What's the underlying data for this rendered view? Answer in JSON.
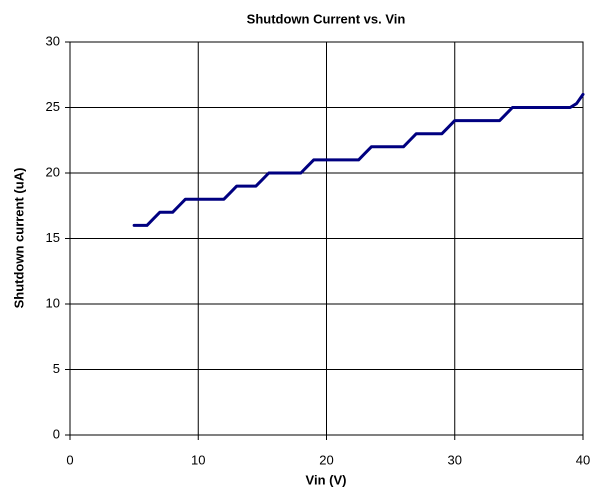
{
  "chart_data": {
    "type": "line",
    "title": "Shutdown Current vs. Vin",
    "x_label": "Vin (V)",
    "y_label": "Shutdown current (uA)",
    "x": [
      5,
      5.5,
      6,
      6.5,
      7,
      7.5,
      8,
      8.5,
      9,
      9.5,
      10,
      11,
      12,
      12.5,
      13,
      14,
      14.5,
      15,
      15.5,
      16,
      17,
      18,
      18.5,
      19,
      20,
      21,
      22,
      22.5,
      23,
      23.5,
      24,
      25,
      26,
      26.5,
      27,
      28,
      29,
      29.5,
      30,
      31,
      32,
      33,
      33.5,
      34,
      34.5,
      35,
      36,
      37,
      38,
      39,
      39.5,
      40
    ],
    "series": [
      {
        "name": "Shutdown current",
        "color": "#000080",
        "values": [
          16,
          16,
          16,
          16.5,
          17,
          17,
          17,
          17.5,
          18,
          18,
          18,
          18,
          18,
          18.5,
          19,
          19,
          19,
          19.5,
          20,
          20,
          20,
          20,
          20.5,
          21,
          21,
          21,
          21,
          21,
          21.5,
          22,
          22,
          22,
          22,
          22.5,
          23,
          23,
          23,
          23.5,
          24,
          24,
          24,
          24,
          24,
          24.5,
          25,
          25,
          25,
          25,
          25,
          25,
          25.3,
          26
        ]
      }
    ],
    "xlim": [
      0,
      40
    ],
    "xticks": [
      0,
      10,
      20,
      30,
      40
    ],
    "ylim": [
      0,
      30
    ],
    "yticks": [
      0,
      5,
      10,
      15,
      20,
      25,
      30
    ],
    "grid": true
  }
}
